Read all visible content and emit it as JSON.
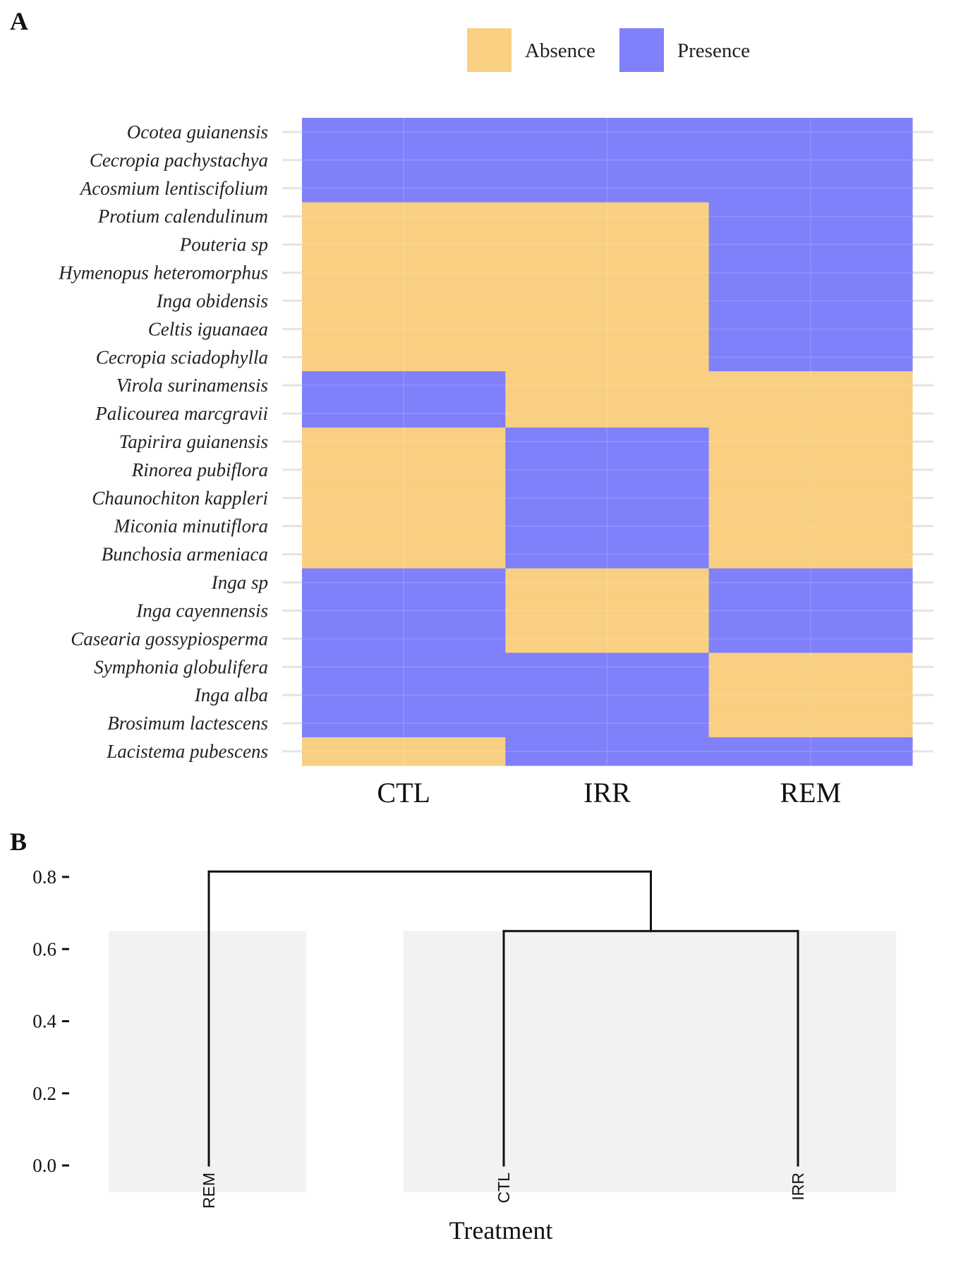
{
  "colors": {
    "absence": "#F9CF82",
    "presence": "#8080FB",
    "grid": "#E4E4E4",
    "panel_bg": "#F2F2F2",
    "line": "#111111"
  },
  "chart_data": [
    {
      "panel": "A",
      "type": "heatmap",
      "legend": {
        "placement": "top-right",
        "entries": [
          "Absence",
          "Presence"
        ]
      },
      "x": [
        "CTL",
        "IRR",
        "REM"
      ],
      "y": [
        "Ocotea guianensis",
        "Cecropia pachystachya",
        "Acosmium lentiscifolium",
        "Protium calendulinum",
        "Pouteria sp",
        "Hymenopus heteromorphus",
        "Inga obidensis",
        "Celtis iguanaea",
        "Cecropia sciadophylla",
        "Virola surinamensis",
        "Palicourea marcgravii",
        "Tapirira guianensis",
        "Rinorea pubiflora",
        "Chaunochiton kappleri ",
        "Miconia minutiflora",
        "Bunchosia armeniaca",
        "Inga sp",
        "Inga cayennensis",
        "Casearia gossypiosperma",
        "Symphonia globulifera",
        "Inga alba",
        "Brosimum lactescens",
        "Lacistema pubescens"
      ],
      "values": [
        [
          "Presence",
          "Presence",
          "Presence"
        ],
        [
          "Presence",
          "Presence",
          "Presence"
        ],
        [
          "Presence",
          "Presence",
          "Presence"
        ],
        [
          "Absence",
          "Absence",
          "Presence"
        ],
        [
          "Absence",
          "Absence",
          "Presence"
        ],
        [
          "Absence",
          "Absence",
          "Presence"
        ],
        [
          "Absence",
          "Absence",
          "Presence"
        ],
        [
          "Absence",
          "Absence",
          "Presence"
        ],
        [
          "Absence",
          "Absence",
          "Presence"
        ],
        [
          "Presence",
          "Absence",
          "Absence"
        ],
        [
          "Presence",
          "Absence",
          "Absence"
        ],
        [
          "Absence",
          "Presence",
          "Absence"
        ],
        [
          "Absence",
          "Presence",
          "Absence"
        ],
        [
          "Absence",
          "Presence",
          "Absence"
        ],
        [
          "Absence",
          "Presence",
          "Absence"
        ],
        [
          "Absence",
          "Presence",
          "Absence"
        ],
        [
          "Presence",
          "Absence",
          "Presence"
        ],
        [
          "Presence",
          "Absence",
          "Presence"
        ],
        [
          "Presence",
          "Absence",
          "Presence"
        ],
        [
          "Presence",
          "Presence",
          "Absence"
        ],
        [
          "Presence",
          "Presence",
          "Absence"
        ],
        [
          "Presence",
          "Presence",
          "Absence"
        ],
        [
          "Absence",
          "Presence",
          "Presence"
        ]
      ],
      "grid": true
    },
    {
      "panel": "B",
      "type": "dendrogram",
      "leaves": [
        "REM",
        "CTL",
        "IRR"
      ],
      "merges": [
        {
          "children": [
            "CTL",
            "IRR"
          ],
          "height": 0.65
        },
        {
          "children": [
            "REM",
            "CTL+IRR"
          ],
          "height": 0.815
        }
      ],
      "cluster_groups": [
        [
          "REM"
        ],
        [
          "CTL",
          "IRR"
        ]
      ],
      "cluster_rect_height": 0.65,
      "yticks": [
        "0.0",
        "0.2",
        "0.4",
        "0.6",
        "0.8"
      ],
      "ytick_values": [
        0.0,
        0.2,
        0.4,
        0.6,
        0.8
      ],
      "ylim": [
        0,
        0.8
      ],
      "xlabel": "Treatment",
      "ylabel": ""
    }
  ]
}
